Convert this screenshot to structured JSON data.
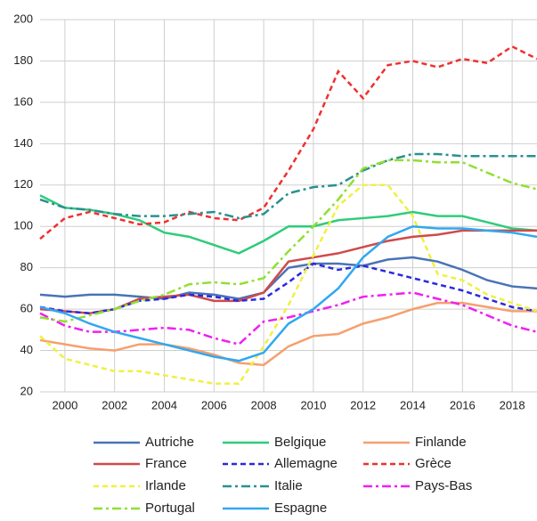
{
  "chart_data": {
    "type": "line",
    "x": [
      1999,
      2000,
      2001,
      2002,
      2003,
      2004,
      2005,
      2006,
      2007,
      2008,
      2009,
      2010,
      2011,
      2012,
      2013,
      2014,
      2015,
      2016,
      2017,
      2018,
      2019
    ],
    "xlim": [
      1999,
      2019
    ],
    "xticks": [
      2000,
      2002,
      2004,
      2006,
      2008,
      2010,
      2012,
      2014,
      2016,
      2018
    ],
    "ylim": [
      20,
      200
    ],
    "yticks": [
      20,
      40,
      60,
      80,
      100,
      120,
      140,
      160,
      180,
      200
    ],
    "grid": true,
    "legend": "bottom",
    "series": [
      {
        "name": "Autriche",
        "color": "#4a73b5",
        "dash": "solid",
        "values": [
          67,
          66,
          67,
          67,
          66,
          65,
          68,
          67,
          65,
          68,
          80,
          82,
          82,
          81,
          84,
          85,
          83,
          79,
          74,
          71,
          70
        ]
      },
      {
        "name": "Belgique",
        "color": "#2ecc7a",
        "dash": "solid",
        "values": [
          115,
          109,
          108,
          106,
          103,
          97,
          95,
          91,
          87,
          93,
          100,
          100,
          103,
          104,
          105,
          107,
          105,
          105,
          102,
          99,
          98
        ]
      },
      {
        "name": "Finlande",
        "color": "#f5a06e",
        "dash": "solid",
        "values": [
          45,
          43,
          41,
          40,
          43,
          43,
          41,
          38,
          34,
          33,
          42,
          47,
          48,
          53,
          56,
          60,
          63,
          63,
          61,
          59,
          59
        ]
      },
      {
        "name": "France",
        "color": "#d04a4a",
        "dash": "solid",
        "values": [
          60,
          59,
          58,
          60,
          65,
          66,
          67,
          64,
          64,
          68,
          83,
          85,
          87,
          90,
          93,
          95,
          96,
          98,
          98,
          98,
          98
        ]
      },
      {
        "name": "Allemagne",
        "color": "#2a2ae0",
        "dash": "dashed",
        "values": [
          61,
          59,
          58,
          60,
          64,
          65,
          67,
          66,
          64,
          65,
          73,
          82,
          79,
          81,
          78,
          75,
          72,
          69,
          65,
          61,
          59
        ]
      },
      {
        "name": "Grèce",
        "color": "#f03030",
        "dash": "dashed",
        "values": [
          94,
          104,
          107,
          104,
          101,
          102,
          107,
          104,
          103,
          109,
          127,
          147,
          175,
          162,
          178,
          180,
          177,
          181,
          179,
          187,
          181
        ]
      },
      {
        "name": "Irlande",
        "color": "#f0f040",
        "dash": "dashed",
        "values": [
          47,
          36,
          33,
          30,
          30,
          28,
          26,
          24,
          24,
          42,
          62,
          86,
          110,
          120,
          120,
          105,
          77,
          74,
          67,
          63,
          59
        ]
      },
      {
        "name": "Italie",
        "color": "#2a9090",
        "dash": "dashdot",
        "values": [
          113,
          109,
          108,
          106,
          105,
          105,
          106,
          107,
          104,
          106,
          116,
          119,
          120,
          127,
          132,
          135,
          135,
          134,
          134,
          134,
          134
        ]
      },
      {
        "name": "Pays-Bas",
        "color": "#f020f0",
        "dash": "dashdot",
        "values": [
          58,
          52,
          49,
          49,
          50,
          51,
          50,
          46,
          43,
          54,
          56,
          59,
          62,
          66,
          67,
          68,
          65,
          62,
          57,
          52,
          49
        ]
      },
      {
        "name": "Portugal",
        "color": "#90e030",
        "dash": "dashdot",
        "values": [
          56,
          54,
          57,
          60,
          64,
          67,
          72,
          73,
          72,
          75,
          88,
          100,
          113,
          128,
          132,
          132,
          131,
          131,
          126,
          121,
          118
        ]
      },
      {
        "name": "Espagne",
        "color": "#30a8f0",
        "dash": "solid",
        "values": [
          61,
          58,
          53,
          49,
          46,
          43,
          40,
          37,
          35,
          39,
          53,
          60,
          70,
          85,
          95,
          100,
          99,
          99,
          98,
          97,
          95
        ]
      }
    ]
  }
}
